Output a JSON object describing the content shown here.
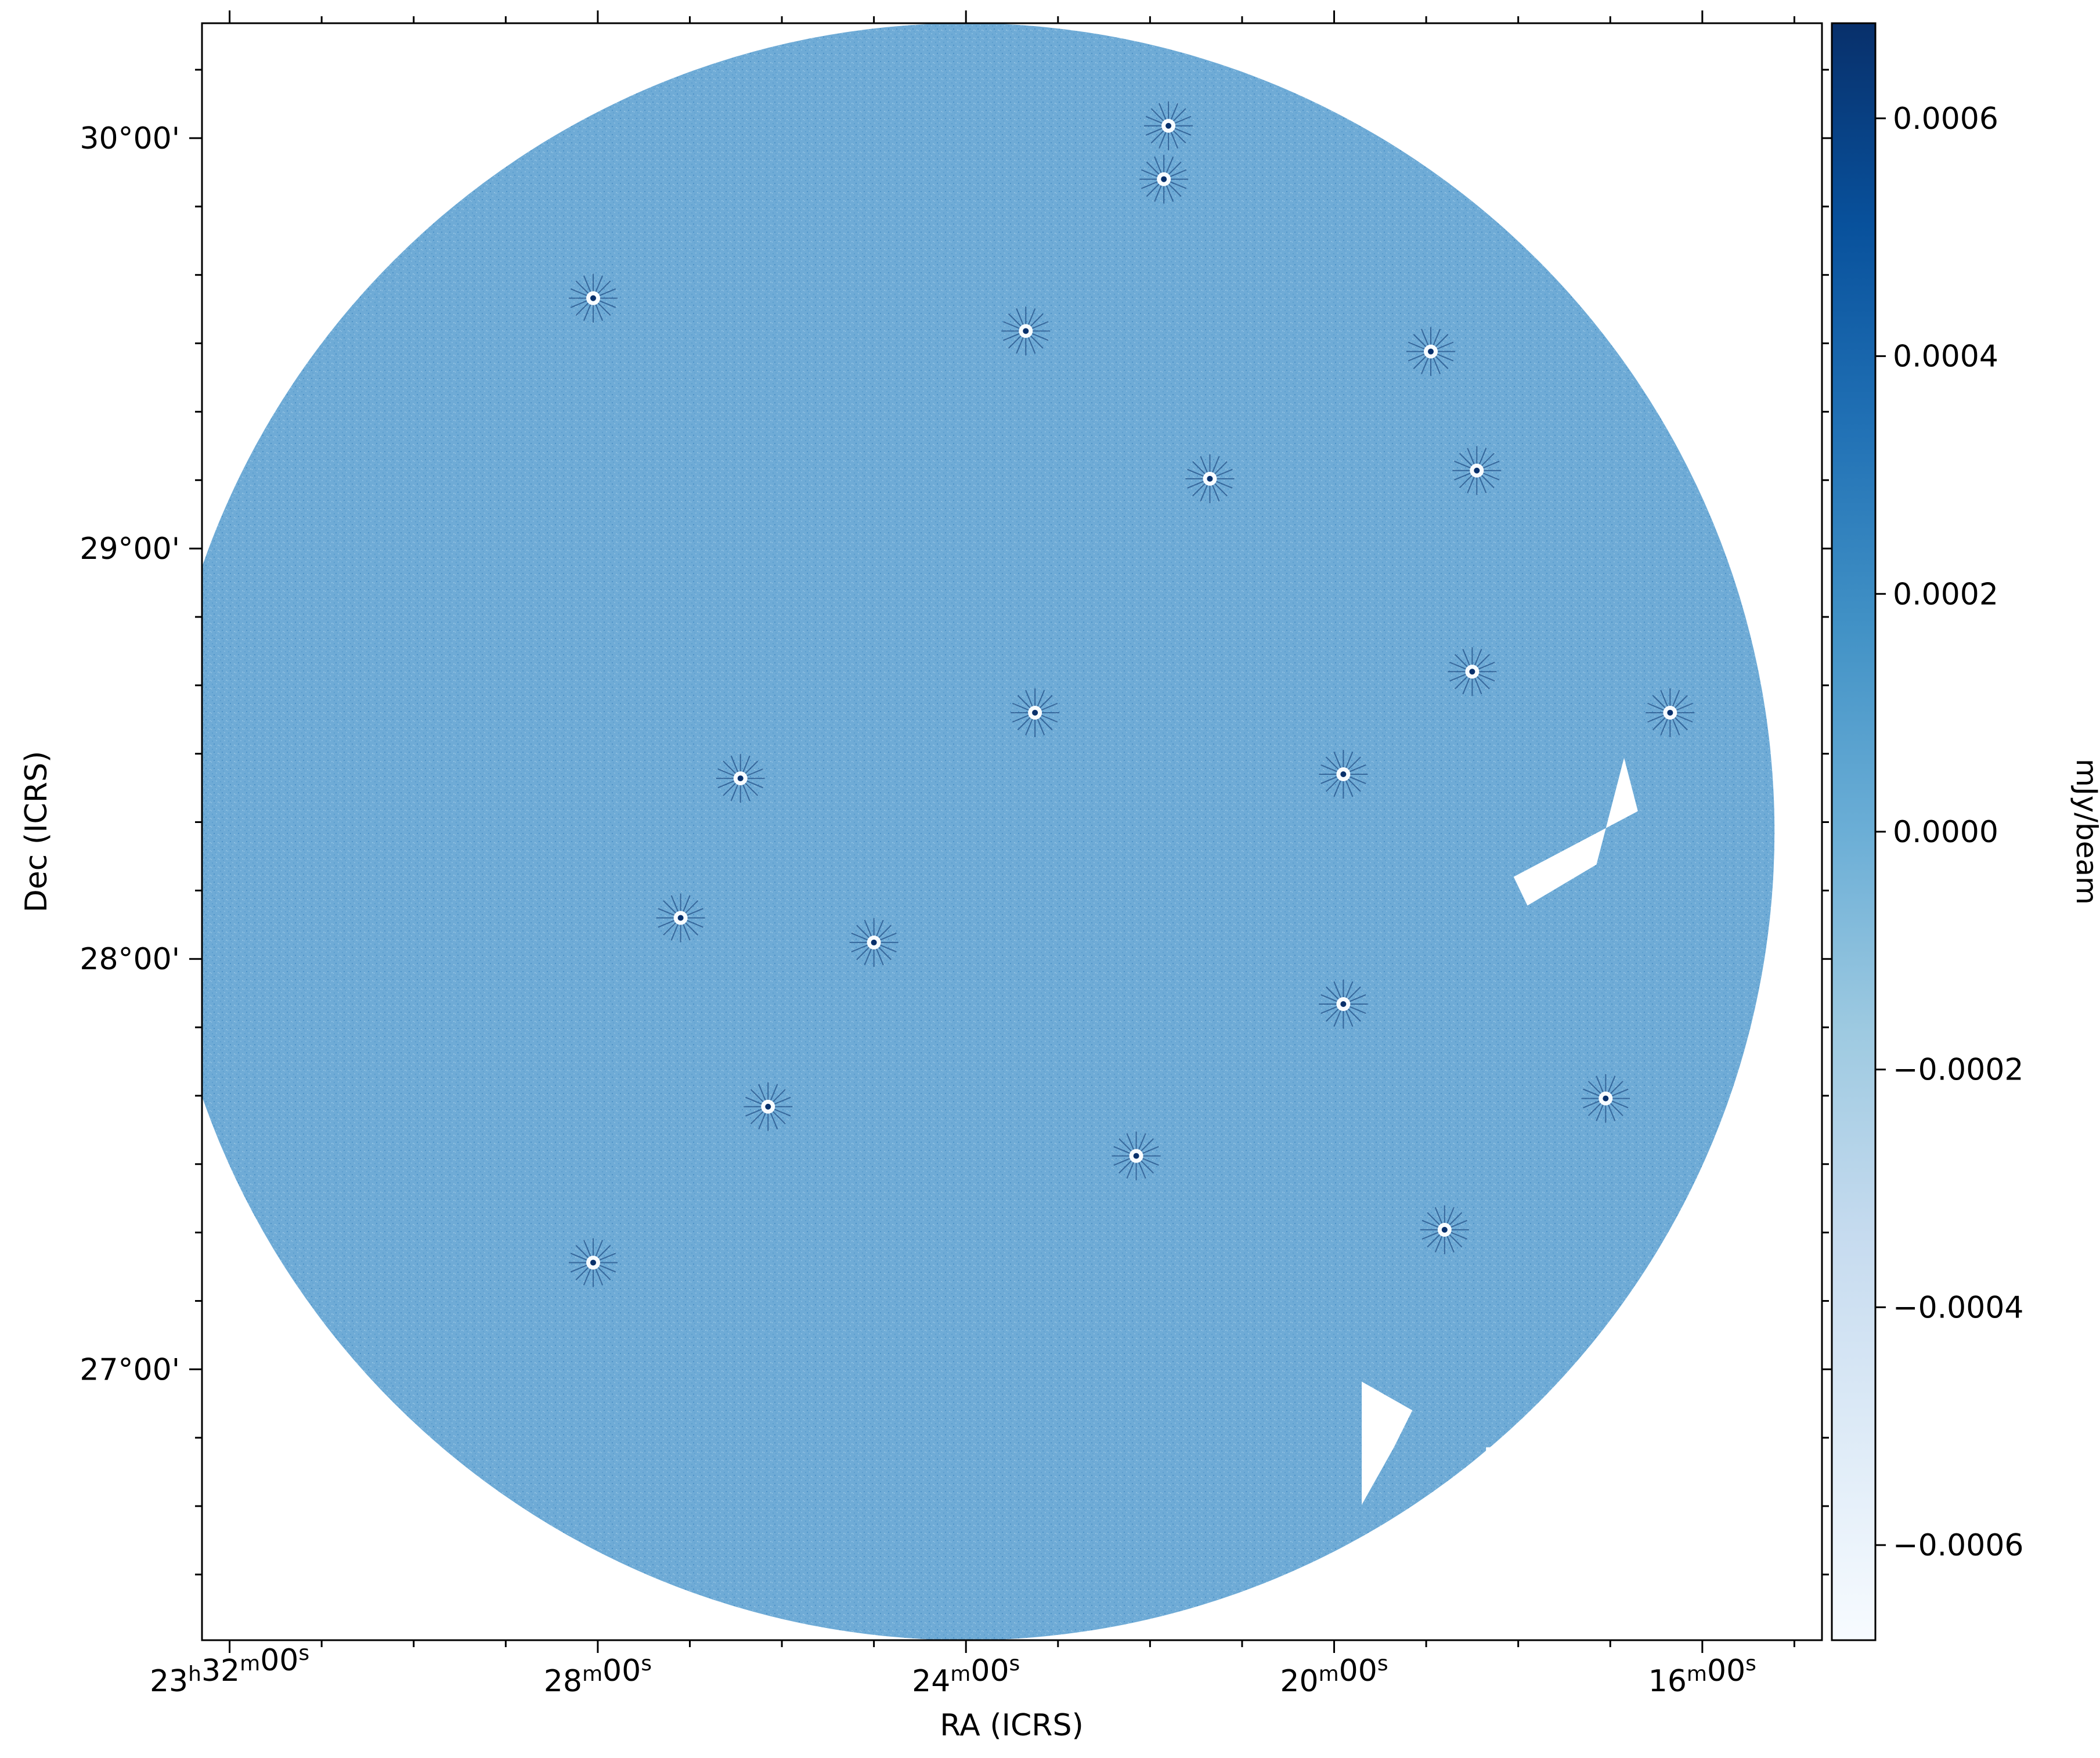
{
  "chart_data": {
    "type": "heatmap",
    "description_visible": "radio continuum image (circular field) with colorbar",
    "colormap": "Blues",
    "colors": {
      "colormap_low": "#f7fbff",
      "colormap_q1": "#c6dbef",
      "colormap_mid": "#6baed6",
      "colormap_q3": "#2171b5",
      "colormap_high": "#08306b",
      "field_color": "#6fabd6",
      "background": "#ffffff"
    },
    "xlabel": "RA (ICRS)",
    "ylabel": "Dec (ICRS)",
    "xlim_minutes": [
      32.3,
      14.7
    ],
    "ylim_degrees": [
      26.34,
      30.28
    ],
    "x_ticks": [
      {
        "value": 32,
        "label_main": "23",
        "label_sup1": "h",
        "label_mid1": "32",
        "label_sup2": "m",
        "label_mid2": "00",
        "label_sup3": "s"
      },
      {
        "value": 28,
        "label_main": "28",
        "label_sup1": "m",
        "label_mid1": "00",
        "label_sup2": "s"
      },
      {
        "value": 24,
        "label_main": "24",
        "label_sup1": "m",
        "label_mid1": "00",
        "label_sup2": "s"
      },
      {
        "value": 20,
        "label_main": "20",
        "label_sup1": "m",
        "label_mid1": "00",
        "label_sup2": "s"
      },
      {
        "value": 16,
        "label_main": "16",
        "label_sup1": "m",
        "label_mid1": "00",
        "label_sup2": "s"
      }
    ],
    "y_ticks": [
      {
        "value": 30,
        "label": "30°00'"
      },
      {
        "value": 29,
        "label": "29°00'"
      },
      {
        "value": 28,
        "label": "28°00'"
      },
      {
        "value": 27,
        "label": "27°00'"
      }
    ],
    "field": {
      "center_ra_minutes": 24.0,
      "center_dec": 28.31,
      "radius_deg": 1.97
    },
    "bright_sources": [
      {
        "ra": 28.05,
        "dec": 29.61
      },
      {
        "ra": 26.45,
        "dec": 28.44
      },
      {
        "ra": 25.0,
        "dec": 28.04
      },
      {
        "ra": 21.8,
        "dec": 30.03
      },
      {
        "ra": 21.85,
        "dec": 29.9
      },
      {
        "ra": 21.35,
        "dec": 29.17
      },
      {
        "ra": 18.45,
        "dec": 29.19
      },
      {
        "ra": 18.5,
        "dec": 28.7
      },
      {
        "ra": 23.25,
        "dec": 28.6
      },
      {
        "ra": 19.9,
        "dec": 28.45
      },
      {
        "ra": 26.15,
        "dec": 27.64
      },
      {
        "ra": 22.15,
        "dec": 27.52
      },
      {
        "ra": 28.05,
        "dec": 27.26
      },
      {
        "ra": 18.8,
        "dec": 27.34
      },
      {
        "ra": 27.1,
        "dec": 28.1
      },
      {
        "ra": 23.35,
        "dec": 29.53
      },
      {
        "ra": 18.95,
        "dec": 29.48
      },
      {
        "ra": 17.05,
        "dec": 27.66
      },
      {
        "ra": 16.35,
        "dec": 28.6
      },
      {
        "ra": 19.9,
        "dec": 27.89
      }
    ],
    "masked_regions": [
      {
        "points": [
          [
            16.85,
            28.49
          ],
          [
            17.15,
            28.23
          ],
          [
            17.9,
            28.13
          ],
          [
            18.05,
            28.2
          ],
          [
            16.7,
            28.36
          ]
        ]
      },
      {
        "points": [
          [
            19.7,
            26.97
          ],
          [
            19.15,
            26.9
          ],
          [
            19.35,
            26.81
          ],
          [
            19.7,
            26.67
          ]
        ]
      },
      {
        "points": [
          [
            18.35,
            26.81
          ],
          [
            17.65,
            26.81
          ],
          [
            18.35,
            26.68
          ]
        ]
      }
    ],
    "colorbar": {
      "label": "mJy/beam",
      "range": [
        -0.00068,
        0.00068
      ],
      "ticks": [
        {
          "value": 0.0006,
          "label": "0.0006"
        },
        {
          "value": 0.0004,
          "label": "0.0004"
        },
        {
          "value": 0.0002,
          "label": "0.0002"
        },
        {
          "value": 0.0,
          "label": "0.0000"
        },
        {
          "value": -0.0002,
          "label": "−0.0002"
        },
        {
          "value": -0.0004,
          "label": "−0.0004"
        },
        {
          "value": -0.0006,
          "label": "−0.0006"
        }
      ]
    }
  }
}
